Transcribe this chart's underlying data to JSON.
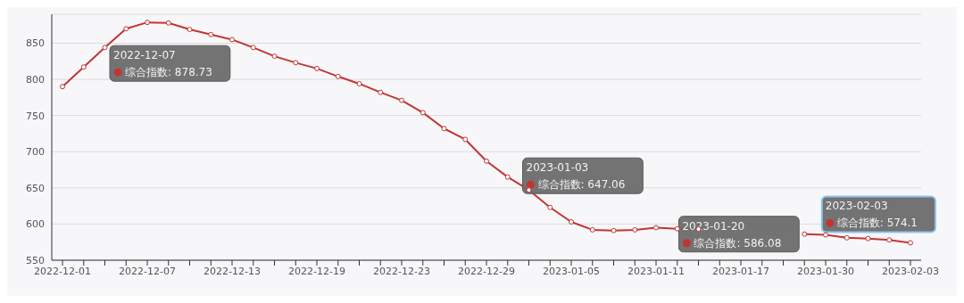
{
  "chart_data": {
    "type": "line",
    "categories": [
      "2022-12-01",
      null,
      null,
      null,
      "2022-12-07",
      null,
      null,
      null,
      "2022-12-13",
      null,
      null,
      null,
      "2022-12-19",
      null,
      null,
      null,
      "2022-12-23",
      null,
      null,
      null,
      "2022-12-29",
      null,
      null,
      null,
      "2023-01-05",
      null,
      null,
      null,
      "2023-01-11",
      null,
      null,
      null,
      "2023-01-17",
      null,
      null,
      null,
      "2023-01-30",
      null,
      null,
      null,
      "2023-02-03"
    ],
    "series": [
      {
        "name": "综合指数:",
        "color": "#c23531",
        "values": [
          790,
          817,
          844,
          870,
          878.73,
          878,
          869,
          862,
          855,
          844,
          832,
          823,
          815,
          804,
          794,
          782,
          771,
          754,
          732,
          717,
          687,
          665,
          647.06,
          623,
          603,
          592,
          591,
          592,
          595,
          593.5,
          593,
          null,
          null,
          null,
          null,
          586.08,
          585,
          581,
          580,
          578,
          574.1
        ],
        "value_labels": [
          null,
          null,
          null,
          null,
          "878.73",
          null,
          null,
          null,
          null,
          null,
          null,
          null,
          null,
          null,
          null,
          null,
          null,
          null,
          null,
          null,
          null,
          null,
          "647.06",
          null,
          null,
          null,
          null,
          null,
          null,
          null,
          null,
          null,
          null,
          null,
          null,
          "586.08",
          null,
          null,
          null,
          null,
          "574.1"
        ]
      }
    ],
    "annotations": [
      "2022-12-07",
      "2023-01-03",
      "2023-01-20",
      "2023-02-03"
    ],
    "ylim": [
      550,
      890
    ],
    "yticks": [
      550,
      600,
      650,
      700,
      750,
      800,
      850
    ],
    "grid": "y",
    "marker": "circle",
    "line_style": "solid"
  }
}
